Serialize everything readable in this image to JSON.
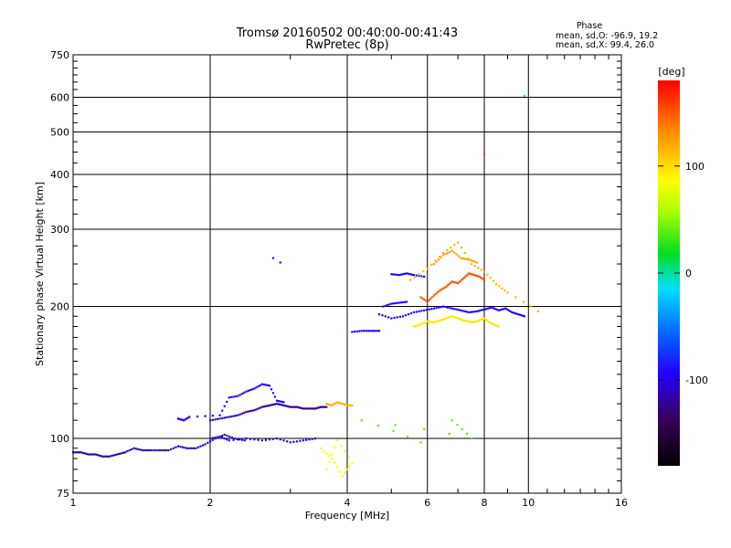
{
  "chart_data": {
    "type": "scatter",
    "title": "Tromsø 20160502 00:40:00-00:41:43",
    "subtitle": "RwPretec (8p)",
    "xlabel": "Frequency [MHz]",
    "ylabel": "Stationary phase Virtual Height [km]",
    "xscale": "log",
    "yscale": "log",
    "xlim": [
      1,
      16
    ],
    "ylim": [
      75,
      750
    ],
    "grid": true,
    "xticks": [
      "1",
      "2",
      "4",
      "6",
      "8",
      "10",
      "16"
    ],
    "xtick_values": [
      1,
      2,
      4,
      6,
      8,
      10,
      16
    ],
    "yticks": [
      "75",
      "100",
      "200",
      "300",
      "400",
      "500",
      "600",
      "750"
    ],
    "ytick_values": [
      75,
      100,
      200,
      300,
      400,
      500,
      600,
      750
    ],
    "stats": {
      "heading": "Phase",
      "line_o": "mean, sd,O:  -96.9, 19.2",
      "line_x": "mean, sd,X:  99.4, 26.0"
    },
    "colorbar": {
      "label": "[deg]",
      "range": [
        -180,
        180
      ],
      "ticks": [
        "100",
        "0",
        "-100"
      ],
      "tick_values": [
        100,
        0,
        -100
      ]
    },
    "series": [
      {
        "x": [
          1.0,
          1.04,
          1.08,
          1.12,
          1.16,
          1.2,
          1.25,
          1.3,
          1.36,
          1.42,
          1.48,
          1.55,
          1.62,
          1.7,
          1.78,
          1.86,
          1.95,
          2.05,
          2.15,
          2.26,
          2.38
        ],
        "y": [
          93,
          93,
          92,
          92,
          91,
          91,
          92,
          93,
          95,
          94,
          94,
          94,
          94,
          96,
          95,
          95,
          97,
          100,
          102,
          100,
          99
        ],
        "phase": -112
      },
      {
        "x": [
          2.0,
          2.1,
          2.2,
          2.3,
          2.4,
          2.5,
          2.6,
          2.7,
          2.8,
          2.9,
          3.0,
          3.1,
          3.2,
          3.3,
          3.4,
          3.5,
          3.6
        ],
        "y": [
          110,
          111,
          112,
          113,
          115,
          116,
          118,
          119,
          120,
          119,
          118,
          118,
          117,
          117,
          117,
          118,
          118
        ],
        "phase": -118
      },
      {
        "x": [
          1.7,
          1.75,
          1.8,
          2.1,
          2.2,
          2.3,
          2.4,
          2.5,
          2.6,
          2.7,
          2.8,
          2.9
        ],
        "y": [
          111,
          110,
          112,
          113,
          124,
          125,
          128,
          130,
          133,
          132,
          122,
          121
        ],
        "phase": -92
      },
      {
        "x": [
          2.0,
          2.1,
          2.2,
          2.4,
          2.6,
          2.8,
          3.0,
          3.2,
          3.4
        ],
        "y": [
          100,
          101,
          99,
          100,
          99,
          100,
          98,
          99,
          100
        ],
        "phase": -100
      },
      {
        "x": [
          2.75,
          2.85
        ],
        "y": [
          258,
          252
        ],
        "phase": -95
      },
      {
        "x": [
          3.6,
          3.7,
          3.8,
          3.9,
          4.0,
          4.1
        ],
        "y": [
          120,
          119,
          121,
          120,
          119,
          119
        ],
        "phase": 115
      },
      {
        "x": [
          3.5,
          3.7,
          3.9,
          4.1,
          3.8,
          3.6
        ],
        "y": [
          95,
          90,
          82,
          88,
          99,
          85
        ],
        "phase": 88
      },
      {
        "x": [
          4.1,
          4.3,
          4.5,
          4.7
        ],
        "y": [
          175,
          176,
          176,
          176
        ],
        "phase": -98
      },
      {
        "x": [
          4.7,
          5.0,
          5.3,
          5.6,
          5.9,
          6.2,
          6.5,
          6.8,
          7.1,
          7.4,
          7.7,
          8.0,
          8.3,
          8.6,
          8.9,
          9.2,
          9.5,
          9.8
        ],
        "y": [
          192,
          188,
          190,
          194,
          196,
          198,
          200,
          198,
          196,
          194,
          195,
          197,
          199,
          196,
          198,
          194,
          192,
          190
        ],
        "phase": -95
      },
      {
        "x": [
          4.8,
          5.0,
          5.2,
          5.4
        ],
        "y": [
          200,
          203,
          204,
          205
        ],
        "phase": -88
      },
      {
        "x": [
          5.0,
          5.2,
          5.4,
          5.6,
          5.9
        ],
        "y": [
          237,
          236,
          238,
          236,
          234
        ],
        "phase": -92
      },
      {
        "x": [
          5.8,
          6.0,
          6.2,
          6.4,
          6.6,
          6.8,
          7.0,
          7.2,
          7.4,
          7.6,
          7.8,
          8.0
        ],
        "y": [
          210,
          205,
          212,
          218,
          222,
          228,
          226,
          232,
          238,
          236,
          234,
          230
        ],
        "phase": 150
      },
      {
        "x": [
          5.6,
          5.8,
          6.0,
          6.2,
          6.4,
          6.6,
          6.8,
          7.0,
          7.2,
          7.4,
          7.6,
          7.8,
          8.0,
          8.2,
          8.4,
          8.6
        ],
        "y": [
          180,
          182,
          185,
          184,
          186,
          188,
          190,
          188,
          186,
          185,
          184,
          186,
          188,
          184,
          182,
          180
        ],
        "phase": 95
      },
      {
        "x": [
          6.2,
          6.5,
          6.8,
          7.1,
          7.4,
          7.7
        ],
        "y": [
          250,
          262,
          268,
          258,
          256,
          252
        ],
        "phase": 125
      },
      {
        "x": [
          5.5,
          6.0,
          6.5,
          7.0,
          7.5,
          8.0,
          8.5,
          9.0,
          10.5
        ],
        "y": [
          230,
          244,
          265,
          280,
          250,
          240,
          225,
          215,
          195
        ],
        "phase": 115
      },
      {
        "x": [
          8.0
        ],
        "y": [
          445
        ],
        "phase": 155
      },
      {
        "x": [
          9.8
        ],
        "y": [
          605
        ],
        "phase": -8
      },
      {
        "x": [
          6.8,
          7.5,
          4.3,
          5.8
        ],
        "y": [
          110,
          100,
          110,
          98
        ],
        "phase": 40
      }
    ]
  }
}
